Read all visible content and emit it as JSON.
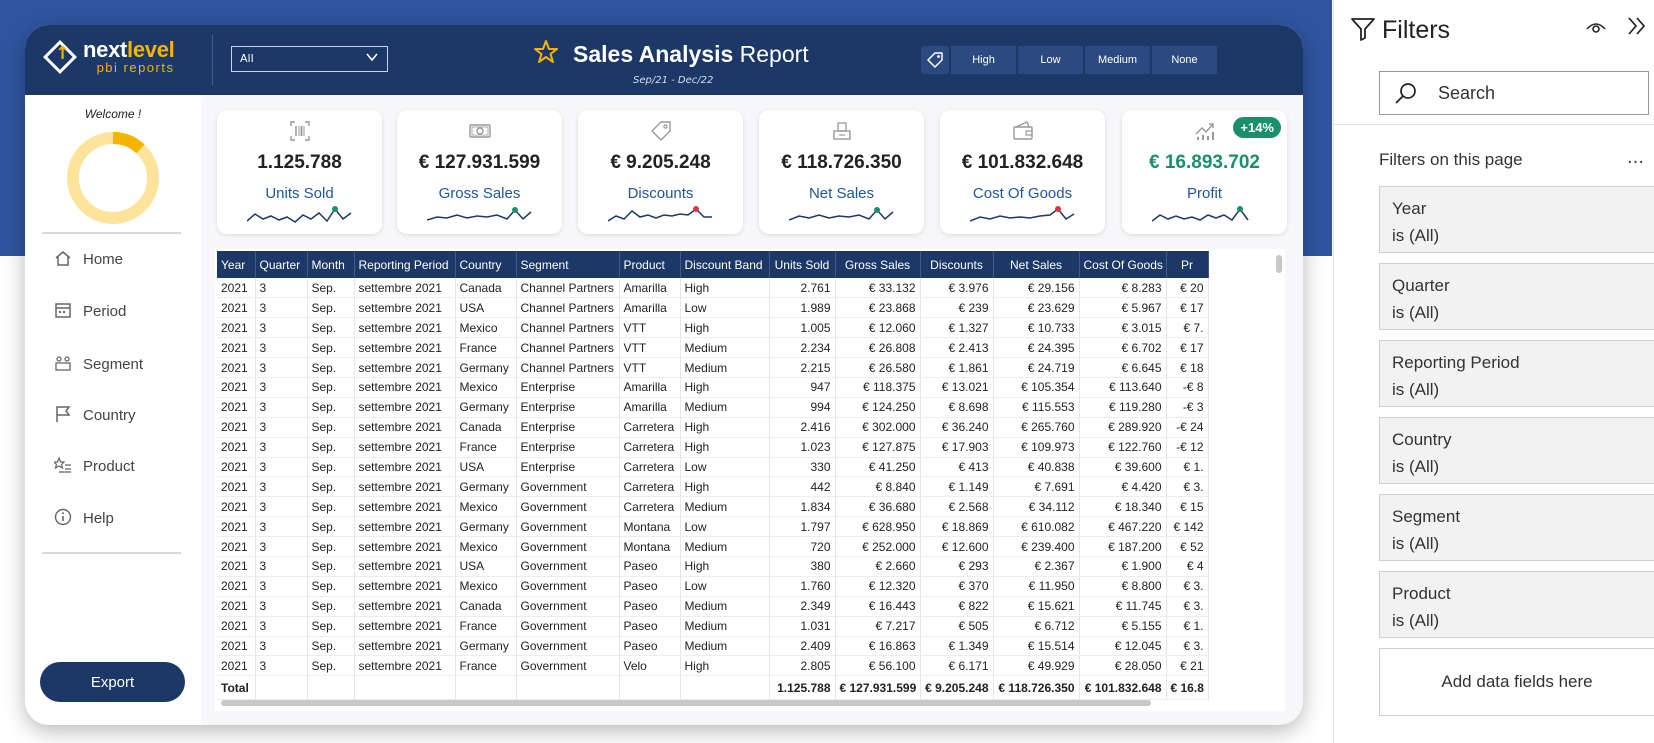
{
  "header": {
    "logo_main": "next",
    "logo_accent": "level",
    "logo_sub": "pbi reports",
    "dropdown_value": "All",
    "title_bold": "Sales Analysis",
    "title_light": "Report",
    "subtitle": "Sep/21 - Dec/22",
    "band_buttons": [
      "High",
      "Low",
      "Medium",
      "None"
    ]
  },
  "sidebar": {
    "welcome": "Welcome !",
    "donut_fraction": 0.12,
    "nav": [
      {
        "label": "Home",
        "icon": "home-icon"
      },
      {
        "label": "Period",
        "icon": "calendar-icon"
      },
      {
        "label": "Segment",
        "icon": "segment-icon"
      },
      {
        "label": "Country",
        "icon": "flag-icon"
      },
      {
        "label": "Product",
        "icon": "product-icon"
      },
      {
        "label": "Help",
        "icon": "info-icon"
      }
    ],
    "export_label": "Export"
  },
  "kpis": [
    {
      "value": "1.125.788",
      "label": "Units Sold",
      "icon": "barcode-icon",
      "marker_color": "#1a8f6b"
    },
    {
      "value": "€ 127.931.599",
      "label": "Gross Sales",
      "icon": "money-icon",
      "marker_color": "#1a8f6b"
    },
    {
      "value": "€ 9.205.248",
      "label": "Discounts",
      "icon": "tag-icon",
      "marker_color": "#e0334a"
    },
    {
      "value": "€ 118.726.350",
      "label": "Net Sales",
      "icon": "register-icon",
      "marker_color": "#1a8f6b"
    },
    {
      "value": "€ 101.832.648",
      "label": "Cost Of Goods",
      "icon": "wallet-icon",
      "marker_color": "#e0334a"
    },
    {
      "value": "€ 16.893.702",
      "label": "Profit",
      "icon": "trend-icon",
      "marker_color": "#1a8f6b",
      "badge": "+14%"
    }
  ],
  "table": {
    "columns": [
      "Year",
      "Quarter",
      "Month",
      "Reporting Period",
      "Country",
      "Segment",
      "Product",
      "Discount Band",
      "Units Sold",
      "Gross Sales",
      "Discounts",
      "Net Sales",
      "Cost Of Goods",
      "Pr"
    ],
    "rows": [
      [
        "2021",
        "3",
        "Sep.",
        "settembre 2021",
        "Canada",
        "Channel Partners",
        "Amarilla",
        "High",
        "2.761",
        "€ 33.132",
        "€ 3.976",
        "€ 29.156",
        "€ 8.283",
        "€ 20"
      ],
      [
        "2021",
        "3",
        "Sep.",
        "settembre 2021",
        "USA",
        "Channel Partners",
        "Amarilla",
        "Low",
        "1.989",
        "€ 23.868",
        "€ 239",
        "€ 23.629",
        "€ 5.967",
        "€ 17"
      ],
      [
        "2021",
        "3",
        "Sep.",
        "settembre 2021",
        "Mexico",
        "Channel Partners",
        "VTT",
        "High",
        "1.005",
        "€ 12.060",
        "€ 1.327",
        "€ 10.733",
        "€ 3.015",
        "€ 7."
      ],
      [
        "2021",
        "3",
        "Sep.",
        "settembre 2021",
        "France",
        "Channel Partners",
        "VTT",
        "Medium",
        "2.234",
        "€ 26.808",
        "€ 2.413",
        "€ 24.395",
        "€ 6.702",
        "€ 17"
      ],
      [
        "2021",
        "3",
        "Sep.",
        "settembre 2021",
        "Germany",
        "Channel Partners",
        "VTT",
        "Medium",
        "2.215",
        "€ 26.580",
        "€ 1.861",
        "€ 24.719",
        "€ 6.645",
        "€ 18"
      ],
      [
        "2021",
        "3",
        "Sep.",
        "settembre 2021",
        "Mexico",
        "Enterprise",
        "Amarilla",
        "High",
        "947",
        "€ 118.375",
        "€ 13.021",
        "€ 105.354",
        "€ 113.640",
        "-€ 8"
      ],
      [
        "2021",
        "3",
        "Sep.",
        "settembre 2021",
        "Germany",
        "Enterprise",
        "Amarilla",
        "Medium",
        "994",
        "€ 124.250",
        "€ 8.698",
        "€ 115.553",
        "€ 119.280",
        "-€ 3"
      ],
      [
        "2021",
        "3",
        "Sep.",
        "settembre 2021",
        "Canada",
        "Enterprise",
        "Carretera",
        "High",
        "2.416",
        "€ 302.000",
        "€ 36.240",
        "€ 265.760",
        "€ 289.920",
        "-€ 24"
      ],
      [
        "2021",
        "3",
        "Sep.",
        "settembre 2021",
        "France",
        "Enterprise",
        "Carretera",
        "High",
        "1.023",
        "€ 127.875",
        "€ 17.903",
        "€ 109.973",
        "€ 122.760",
        "-€ 12"
      ],
      [
        "2021",
        "3",
        "Sep.",
        "settembre 2021",
        "USA",
        "Enterprise",
        "Carretera",
        "Low",
        "330",
        "€ 41.250",
        "€ 413",
        "€ 40.838",
        "€ 39.600",
        "€ 1."
      ],
      [
        "2021",
        "3",
        "Sep.",
        "settembre 2021",
        "Germany",
        "Government",
        "Carretera",
        "High",
        "442",
        "€ 8.840",
        "€ 1.149",
        "€ 7.691",
        "€ 4.420",
        "€ 3."
      ],
      [
        "2021",
        "3",
        "Sep.",
        "settembre 2021",
        "Mexico",
        "Government",
        "Carretera",
        "Medium",
        "1.834",
        "€ 36.680",
        "€ 2.568",
        "€ 34.112",
        "€ 18.340",
        "€ 15"
      ],
      [
        "2021",
        "3",
        "Sep.",
        "settembre 2021",
        "Germany",
        "Government",
        "Montana",
        "Low",
        "1.797",
        "€ 628.950",
        "€ 18.869",
        "€ 610.082",
        "€ 467.220",
        "€ 142"
      ],
      [
        "2021",
        "3",
        "Sep.",
        "settembre 2021",
        "Mexico",
        "Government",
        "Montana",
        "Medium",
        "720",
        "€ 252.000",
        "€ 12.600",
        "€ 239.400",
        "€ 187.200",
        "€ 52"
      ],
      [
        "2021",
        "3",
        "Sep.",
        "settembre 2021",
        "USA",
        "Government",
        "Paseo",
        "High",
        "380",
        "€ 2.660",
        "€ 293",
        "€ 2.367",
        "€ 1.900",
        "€ 4"
      ],
      [
        "2021",
        "3",
        "Sep.",
        "settembre 2021",
        "Mexico",
        "Government",
        "Paseo",
        "Low",
        "1.760",
        "€ 12.320",
        "€ 370",
        "€ 11.950",
        "€ 8.800",
        "€ 3."
      ],
      [
        "2021",
        "3",
        "Sep.",
        "settembre 2021",
        "Canada",
        "Government",
        "Paseo",
        "Medium",
        "2.349",
        "€ 16.443",
        "€ 822",
        "€ 15.621",
        "€ 11.745",
        "€ 3."
      ],
      [
        "2021",
        "3",
        "Sep.",
        "settembre 2021",
        "France",
        "Government",
        "Paseo",
        "Medium",
        "1.031",
        "€ 7.217",
        "€ 505",
        "€ 6.712",
        "€ 5.155",
        "€ 1."
      ],
      [
        "2021",
        "3",
        "Sep.",
        "settembre 2021",
        "Germany",
        "Government",
        "Paseo",
        "Medium",
        "2.409",
        "€ 16.863",
        "€ 1.349",
        "€ 15.514",
        "€ 12.045",
        "€ 3."
      ],
      [
        "2021",
        "3",
        "Sep.",
        "settembre 2021",
        "France",
        "Government",
        "Velo",
        "High",
        "2.805",
        "€ 56.100",
        "€ 6.171",
        "€ 49.929",
        "€ 28.050",
        "€ 21"
      ]
    ],
    "total": [
      "Total",
      "",
      "",
      "",
      "",
      "",
      "",
      "",
      "1.125.788",
      "€ 127.931.599",
      "€ 9.205.248",
      "€ 118.726.350",
      "€ 101.832.648",
      "€ 16.8"
    ]
  },
  "filter_pane": {
    "title": "Filters",
    "search_placeholder": "Search",
    "section_label": "Filters on this page",
    "more": "…",
    "filters": [
      {
        "name": "Year",
        "state": "is (All)"
      },
      {
        "name": "Quarter",
        "state": "is (All)"
      },
      {
        "name": "Reporting Period",
        "state": "is (All)"
      },
      {
        "name": "Country",
        "state": "is (All)"
      },
      {
        "name": "Segment",
        "state": "is (All)"
      },
      {
        "name": "Product",
        "state": "is (All)"
      }
    ],
    "add_fields": "Add data fields here"
  },
  "colors": {
    "navy": "#1c3867",
    "accent_yellow": "#f5b400",
    "positive": "#1a8f6b",
    "negative": "#e0334a",
    "link_blue": "#1f55a0"
  }
}
